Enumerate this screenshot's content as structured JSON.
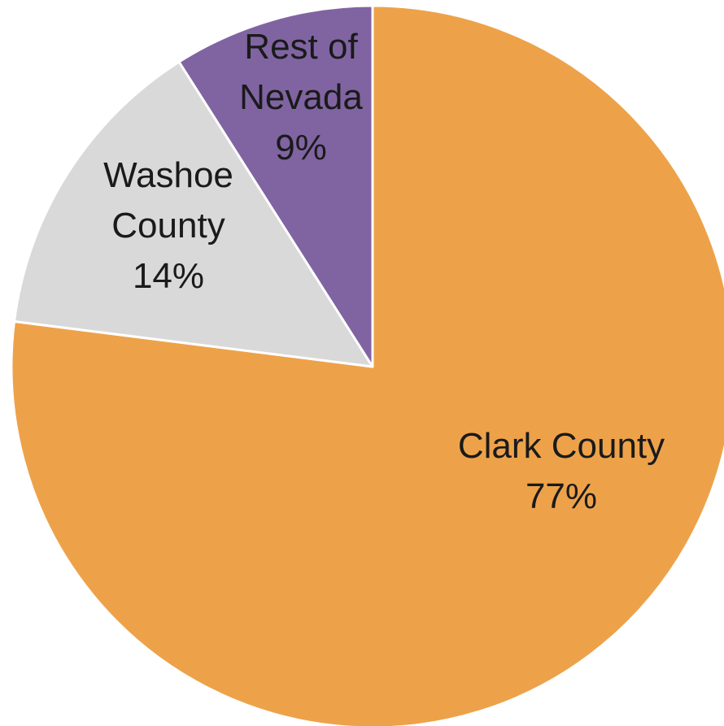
{
  "chart_data": {
    "type": "pie",
    "title": "",
    "start_angle_deg": 0,
    "direction": "clockwise",
    "slices": [
      {
        "label": "Clark County",
        "value": 77,
        "display": "77%",
        "color": "#EDA24A"
      },
      {
        "label": "Washoe County",
        "value": 14,
        "display": "14%",
        "color": "#D9D9D9"
      },
      {
        "label": "Rest of Nevada",
        "value": 9,
        "display": "9%",
        "color": "#8064A2"
      }
    ]
  }
}
